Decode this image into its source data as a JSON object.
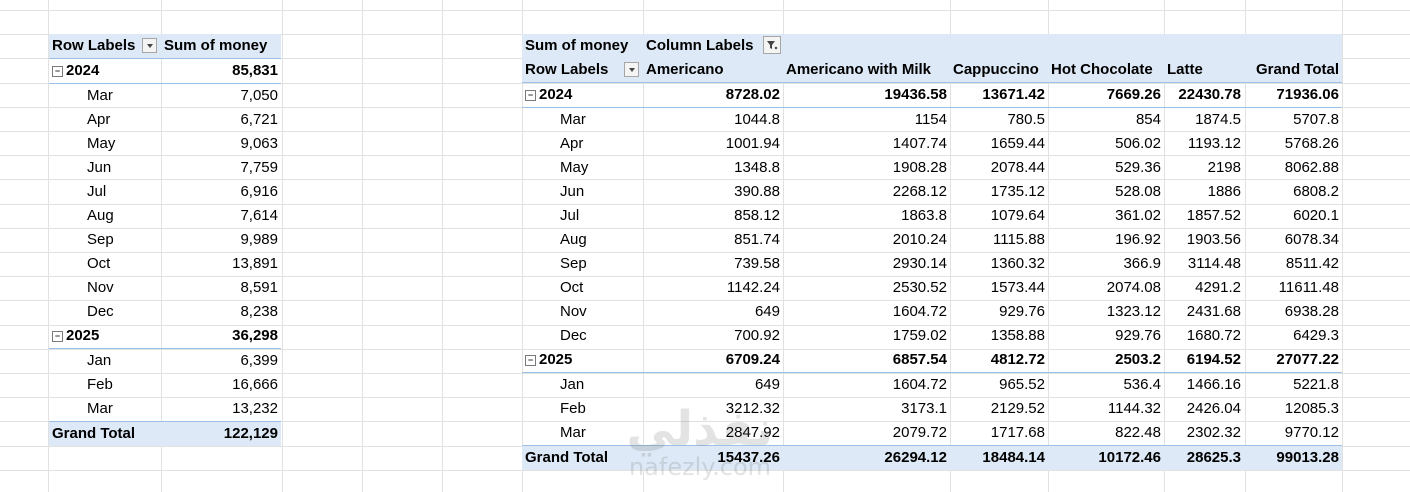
{
  "watermark": {
    "arabic": "نفذلي",
    "url": "nafezly.com"
  },
  "pivot1": {
    "headers": {
      "row_labels": "Row Labels",
      "sum_of_money": "Sum of money"
    },
    "years": [
      {
        "year": "2024",
        "total": "85,831",
        "months": [
          {
            "m": "Mar",
            "v": "7,050"
          },
          {
            "m": "Apr",
            "v": "6,721"
          },
          {
            "m": "May",
            "v": "9,063"
          },
          {
            "m": "Jun",
            "v": "7,759"
          },
          {
            "m": "Jul",
            "v": "6,916"
          },
          {
            "m": "Aug",
            "v": "7,614"
          },
          {
            "m": "Sep",
            "v": "9,989"
          },
          {
            "m": "Oct",
            "v": "13,891"
          },
          {
            "m": "Nov",
            "v": "8,591"
          },
          {
            "m": "Dec",
            "v": "8,238"
          }
        ]
      },
      {
        "year": "2025",
        "total": "36,298",
        "months": [
          {
            "m": "Jan",
            "v": "6,399"
          },
          {
            "m": "Feb",
            "v": "16,666"
          },
          {
            "m": "Mar",
            "v": "13,232"
          }
        ]
      }
    ],
    "grand_total_label": "Grand Total",
    "grand_total": "122,129"
  },
  "pivot2": {
    "headers": {
      "sum_of_money": "Sum of money",
      "column_labels": "Column Labels",
      "row_labels": "Row Labels",
      "cols": [
        "Americano",
        "Americano with Milk",
        "Cappuccino",
        "Hot Chocolate",
        "Latte",
        "Grand Total"
      ]
    },
    "years": [
      {
        "year": "2024",
        "totals": [
          "8728.02",
          "19436.58",
          "13671.42",
          "7669.26",
          "22430.78",
          "71936.06"
        ],
        "months": [
          {
            "m": "Mar",
            "v": [
              "1044.8",
              "1154",
              "780.5",
              "854",
              "1874.5",
              "5707.8"
            ]
          },
          {
            "m": "Apr",
            "v": [
              "1001.94",
              "1407.74",
              "1659.44",
              "506.02",
              "1193.12",
              "5768.26"
            ]
          },
          {
            "m": "May",
            "v": [
              "1348.8",
              "1908.28",
              "2078.44",
              "529.36",
              "2198",
              "8062.88"
            ]
          },
          {
            "m": "Jun",
            "v": [
              "390.88",
              "2268.12",
              "1735.12",
              "528.08",
              "1886",
              "6808.2"
            ]
          },
          {
            "m": "Jul",
            "v": [
              "858.12",
              "1863.8",
              "1079.64",
              "361.02",
              "1857.52",
              "6020.1"
            ]
          },
          {
            "m": "Aug",
            "v": [
              "851.74",
              "2010.24",
              "1115.88",
              "196.92",
              "1903.56",
              "6078.34"
            ]
          },
          {
            "m": "Sep",
            "v": [
              "739.58",
              "2930.14",
              "1360.32",
              "366.9",
              "3114.48",
              "8511.42"
            ]
          },
          {
            "m": "Oct",
            "v": [
              "1142.24",
              "2530.52",
              "1573.44",
              "2074.08",
              "4291.2",
              "11611.48"
            ]
          },
          {
            "m": "Nov",
            "v": [
              "649",
              "1604.72",
              "929.76",
              "1323.12",
              "2431.68",
              "6938.28"
            ]
          },
          {
            "m": "Dec",
            "v": [
              "700.92",
              "1759.02",
              "1358.88",
              "929.76",
              "1680.72",
              "6429.3"
            ]
          }
        ]
      },
      {
        "year": "2025",
        "totals": [
          "6709.24",
          "6857.54",
          "4812.72",
          "2503.2",
          "6194.52",
          "27077.22"
        ],
        "months": [
          {
            "m": "Jan",
            "v": [
              "649",
              "1604.72",
              "965.52",
              "536.4",
              "1466.16",
              "5221.8"
            ]
          },
          {
            "m": "Feb",
            "v": [
              "3212.32",
              "3173.1",
              "2129.52",
              "1144.32",
              "2426.04",
              "12085.3"
            ]
          },
          {
            "m": "Mar",
            "v": [
              "2847.92",
              "2079.72",
              "1717.68",
              "822.48",
              "2302.32",
              "9770.12"
            ]
          }
        ]
      }
    ],
    "grand_total_label": "Grand Total",
    "grand_totals": [
      "15437.26",
      "26294.12",
      "18484.14",
      "10172.46",
      "28625.3",
      "99013.28"
    ]
  }
}
